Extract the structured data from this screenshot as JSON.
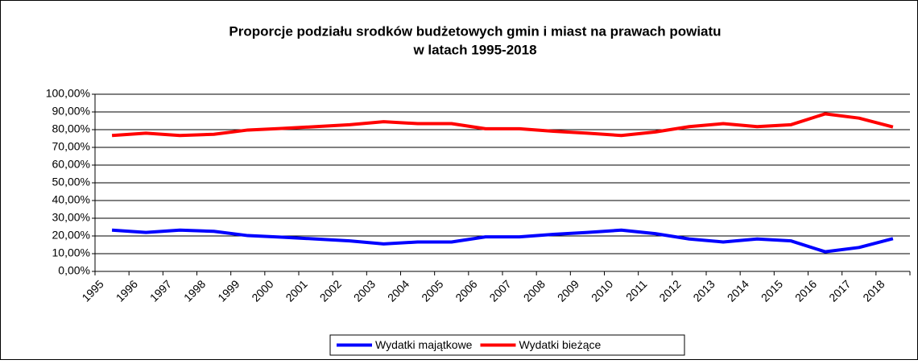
{
  "chart_data": {
    "type": "line",
    "title": [
      "Proporcje podziału srodków budżetowych gmin i miast na prawach powiatu",
      "w latach 1995-2018"
    ],
    "categories": [
      "1995",
      "1996",
      "1997",
      "1998",
      "1999",
      "2000",
      "2001",
      "2002",
      "2003",
      "2004",
      "2005",
      "2006",
      "2007",
      "2008",
      "2009",
      "2010",
      "2011",
      "2012",
      "2013",
      "2014",
      "2015",
      "2016",
      "2017",
      "2018"
    ],
    "series": [
      {
        "name": "Wydatki majątkowe",
        "color": "#0000ff",
        "values": [
          23.3,
          22,
          23.3,
          22.6,
          20.2,
          19.3,
          18.3,
          17.2,
          15.5,
          16.6,
          16.6,
          19.5,
          19.5,
          20.9,
          22,
          23.3,
          21.3,
          18.3,
          16.6,
          18.3,
          17.2,
          11.1,
          13.5,
          18.5
        ]
      },
      {
        "name": "Wydatki bieżące",
        "color": "#ff0000",
        "values": [
          76.7,
          78,
          76.7,
          77.4,
          79.8,
          80.7,
          81.7,
          82.8,
          84.5,
          83.4,
          83.4,
          80.5,
          80.5,
          79.1,
          78,
          76.7,
          78.7,
          81.7,
          83.4,
          81.7,
          82.8,
          88.9,
          86.5,
          81.5
        ]
      }
    ],
    "ylim": [
      0,
      100
    ],
    "yticks": [
      {
        "value": 0,
        "label": "0,00%"
      },
      {
        "value": 10,
        "label": "10,00%"
      },
      {
        "value": 20,
        "label": "20,00%"
      },
      {
        "value": 30,
        "label": "30,00%"
      },
      {
        "value": 40,
        "label": "40,00%"
      },
      {
        "value": 50,
        "label": "50,00%"
      },
      {
        "value": 60,
        "label": "60,00%"
      },
      {
        "value": 70,
        "label": "70,00%"
      },
      {
        "value": 80,
        "label": "80,00%"
      },
      {
        "value": 90,
        "label": "90,00%"
      },
      {
        "value": 100,
        "label": "100,00%"
      }
    ],
    "grid": true,
    "legend": "bottom"
  }
}
